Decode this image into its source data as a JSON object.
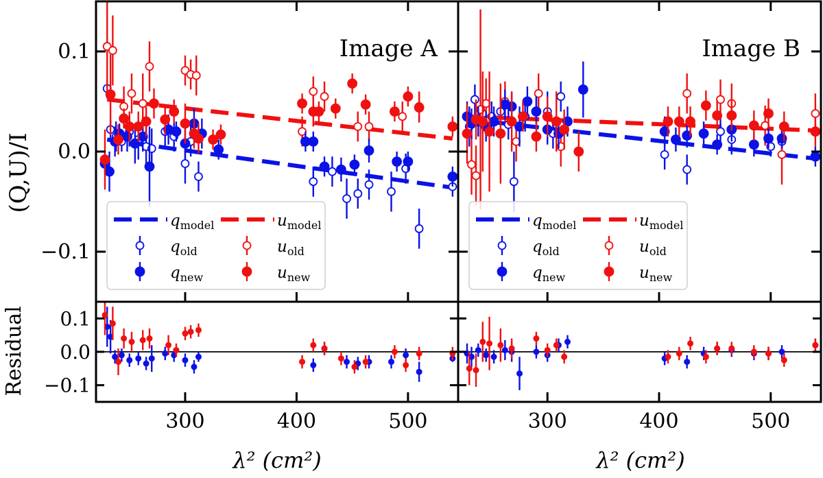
{
  "figure": {
    "ylabel_main": "(Q,U)/I",
    "ylabel_residual": "Residual",
    "xlabel": "λ² (cm²)",
    "colors": {
      "q": "#0a12e6",
      "u": "#f01010",
      "axis": "#000000"
    }
  },
  "chart_data": [
    {
      "type": "scatter",
      "title": "Image A",
      "xlim": [
        220,
        545
      ],
      "ylim": [
        -0.15,
        0.15
      ],
      "resid_ylim": [
        -0.15,
        0.15
      ],
      "xticks": [
        300,
        400,
        500
      ],
      "xticklabels": [
        "300",
        "400",
        "500"
      ],
      "yticks": [
        0.1,
        0.0,
        -0.1
      ],
      "yticklabels": [
        "0.1",
        "0.0",
        "−0.1"
      ],
      "resid_yticks": [
        0.1,
        0.0,
        -0.1
      ],
      "resid_yticklabels": [
        "0.1",
        "0.0",
        "−0.1"
      ],
      "legend": {
        "position": "lower-left",
        "entries": [
          {
            "sym": "q",
            "sub": "model",
            "series": "q_model"
          },
          {
            "sym": "u",
            "sub": "model",
            "series": "u_model"
          },
          {
            "sym": "q",
            "sub": "old",
            "series": "q_old"
          },
          {
            "sym": "u",
            "sub": "old",
            "series": "u_old"
          },
          {
            "sym": "q",
            "sub": "new",
            "series": "q_new"
          },
          {
            "sym": "u",
            "sub": "new",
            "series": "u_new"
          }
        ]
      },
      "models": {
        "q_model": {
          "x": [
            230,
            540
          ],
          "y": [
            0.012,
            -0.036
          ]
        },
        "u_model": {
          "x": [
            230,
            540
          ],
          "y": [
            0.052,
            0.013
          ]
        }
      },
      "series": {
        "q_old": {
          "x": [
            230,
            233,
            238,
            243,
            250,
            258,
            265,
            270,
            282,
            290,
            300,
            305,
            312,
            415,
            432,
            445,
            455,
            465,
            485,
            498,
            510,
            540
          ],
          "y": [
            0.063,
            0.022,
            0.015,
            0.01,
            0.02,
            0.012,
            0.005,
            0.003,
            0.02,
            0.015,
            -0.012,
            0.01,
            -0.025,
            -0.03,
            -0.02,
            -0.047,
            -0.042,
            -0.033,
            -0.04,
            -0.017,
            -0.077,
            -0.035
          ],
          "err": [
            0.01,
            0.01,
            0.015,
            0.01,
            0.015,
            0.02,
            0.02,
            0.02,
            0.015,
            0.015,
            0.02,
            0.015,
            0.015,
            0.015,
            0.015,
            0.02,
            0.015,
            0.015,
            0.02,
            0.015,
            0.02,
            0.01
          ]
        },
        "q_new": {
          "x": [
            228,
            232,
            237,
            241,
            248,
            255,
            262,
            268,
            285,
            292,
            300,
            308,
            315,
            330,
            408,
            415,
            425,
            440,
            452,
            465,
            490,
            500,
            540
          ],
          "y": [
            -0.012,
            -0.02,
            0.01,
            0.018,
            0.015,
            0.008,
            0.015,
            -0.015,
            0.022,
            0.02,
            0.008,
            0.028,
            0.018,
            0.002,
            0.01,
            0.01,
            -0.015,
            -0.018,
            -0.013,
            0.001,
            -0.01,
            -0.01,
            -0.025
          ],
          "err": [
            0.01,
            0.02,
            0.015,
            0.01,
            0.015,
            0.02,
            0.015,
            0.04,
            0.015,
            0.01,
            0.015,
            0.015,
            0.015,
            0.01,
            0.01,
            0.01,
            0.01,
            0.012,
            0.01,
            0.012,
            0.01,
            0.01,
            0.01
          ]
        },
        "u_old": {
          "x": [
            230,
            235,
            245,
            252,
            262,
            268,
            300,
            305,
            310,
            405,
            415,
            425,
            455,
            465,
            495,
            510
          ],
          "y": [
            0.105,
            0.101,
            0.045,
            0.058,
            0.048,
            0.085,
            0.081,
            0.077,
            0.076,
            0.02,
            0.06,
            0.055,
            0.025,
            0.025,
            0.035,
            0.045
          ],
          "err": [
            0.05,
            0.035,
            0.02,
            0.02,
            0.03,
            0.025,
            0.015,
            0.015,
            0.02,
            0.015,
            0.015,
            0.015,
            0.015,
            0.015,
            0.015,
            0.015
          ]
        },
        "u_new": {
          "x": [
            228,
            233,
            240,
            245,
            250,
            258,
            265,
            272,
            282,
            290,
            300,
            308,
            312,
            325,
            332,
            405,
            415,
            420,
            435,
            450,
            462,
            488,
            500,
            510,
            540
          ],
          "y": [
            -0.008,
            0.057,
            0.012,
            0.033,
            0.025,
            0.025,
            0.03,
            0.048,
            0.032,
            0.04,
            0.028,
            0.018,
            0.013,
            0.012,
            0.017,
            0.048,
            0.04,
            0.04,
            0.043,
            0.068,
            0.047,
            0.04,
            0.055,
            0.044,
            0.025
          ],
          "err": [
            0.03,
            0.04,
            0.015,
            0.01,
            0.015,
            0.015,
            0.015,
            0.015,
            0.015,
            0.012,
            0.02,
            0.015,
            0.015,
            0.01,
            0.01,
            0.01,
            0.015,
            0.01,
            0.01,
            0.01,
            0.01,
            0.01,
            0.01,
            0.015,
            0.01
          ]
        }
      },
      "residuals": {
        "q": {
          "x": [
            230,
            233,
            237,
            243,
            250,
            258,
            265,
            270,
            282,
            290,
            300,
            308,
            312,
            415,
            425,
            445,
            455,
            465,
            485,
            498,
            510,
            540
          ],
          "y": [
            0.075,
            0.045,
            -0.015,
            -0.01,
            -0.025,
            -0.02,
            -0.035,
            -0.02,
            -0.005,
            -0.01,
            -0.025,
            -0.045,
            -0.015,
            -0.04,
            0.01,
            -0.03,
            -0.035,
            -0.03,
            -0.03,
            -0.01,
            -0.06,
            -0.02
          ],
          "err": [
            0.06,
            0.05,
            0.02,
            0.02,
            0.02,
            0.02,
            0.02,
            0.04,
            0.02,
            0.02,
            0.02,
            0.02,
            0.015,
            0.02,
            0.02,
            0.02,
            0.02,
            0.02,
            0.02,
            0.02,
            0.03,
            0.01
          ]
        },
        "u": {
          "x": [
            228,
            235,
            240,
            245,
            252,
            262,
            268,
            285,
            292,
            300,
            305,
            312,
            405,
            415,
            425,
            440,
            452,
            462,
            488,
            498,
            510,
            540
          ],
          "y": [
            0.11,
            0.085,
            -0.03,
            0.04,
            0.03,
            0.035,
            0.04,
            0.02,
            0.005,
            0.055,
            0.06,
            0.065,
            -0.03,
            0.02,
            0.01,
            -0.02,
            -0.045,
            -0.03,
            0.0,
            -0.04,
            -0.005,
            -0.005
          ],
          "err": [
            0.06,
            0.05,
            0.04,
            0.03,
            0.03,
            0.03,
            0.03,
            0.03,
            0.02,
            0.02,
            0.02,
            0.02,
            0.02,
            0.02,
            0.02,
            0.02,
            0.02,
            0.02,
            0.02,
            0.02,
            0.02,
            0.02
          ]
        }
      }
    },
    {
      "type": "scatter",
      "title": "Image B",
      "xlim": [
        220,
        545
      ],
      "ylim": [
        -0.15,
        0.15
      ],
      "resid_ylim": [
        -0.15,
        0.15
      ],
      "xticks": [
        300,
        400,
        500
      ],
      "xticklabels": [
        "300",
        "400",
        "500"
      ],
      "legend": {
        "position": "lower-left",
        "entries": [
          {
            "sym": "q",
            "sub": "model",
            "series": "q_model"
          },
          {
            "sym": "u",
            "sub": "model",
            "series": "u_model"
          },
          {
            "sym": "q",
            "sub": "old",
            "series": "q_old"
          },
          {
            "sym": "u",
            "sub": "old",
            "series": "u_old"
          },
          {
            "sym": "q",
            "sub": "new",
            "series": "q_new"
          },
          {
            "sym": "u",
            "sub": "new",
            "series": "u_new"
          }
        ]
      },
      "models": {
        "q_model": {
          "x": [
            230,
            540
          ],
          "y": [
            0.032,
            -0.007
          ]
        },
        "u_model": {
          "x": [
            230,
            540
          ],
          "y": [
            0.035,
            0.021
          ]
        }
      },
      "series": {
        "q_old": {
          "x": [
            230,
            235,
            242,
            250,
            258,
            265,
            270,
            280,
            290,
            300,
            305,
            312,
            405,
            425,
            455,
            465,
            500,
            510
          ],
          "y": [
            0.025,
            0.052,
            0.038,
            0.035,
            0.04,
            0.027,
            -0.03,
            0.035,
            0.04,
            0.04,
            0.018,
            0.055,
            -0.003,
            -0.018,
            0.02,
            0.012,
            0.005,
            0.01
          ],
          "err": [
            0.02,
            0.015,
            0.02,
            0.015,
            0.015,
            0.015,
            0.03,
            0.015,
            0.015,
            0.02,
            0.015,
            0.015,
            0.015,
            0.015,
            0.015,
            0.015,
            0.01,
            0.01
          ]
        },
        "q_new": {
          "x": [
            228,
            232,
            238,
            245,
            252,
            262,
            268,
            275,
            282,
            290,
            300,
            310,
            318,
            332,
            405,
            415,
            425,
            440,
            452,
            465,
            485,
            498,
            510,
            540
          ],
          "y": [
            0.035,
            0.028,
            0.03,
            0.025,
            0.03,
            0.047,
            0.045,
            0.025,
            0.05,
            0.04,
            0.022,
            0.018,
            0.03,
            0.062,
            0.02,
            0.012,
            0.016,
            0.018,
            0.007,
            0.022,
            0.007,
            0.013,
            0.013,
            -0.005
          ],
          "err": [
            0.015,
            0.015,
            0.015,
            0.015,
            0.015,
            0.015,
            0.015,
            0.02,
            0.015,
            0.015,
            0.015,
            0.015,
            0.015,
            0.028,
            0.015,
            0.012,
            0.012,
            0.012,
            0.01,
            0.012,
            0.012,
            0.01,
            0.01,
            0.01
          ]
        },
        "u_old": {
          "x": [
            232,
            236,
            240,
            245,
            262,
            272,
            292,
            312,
            425,
            455,
            465,
            495,
            510,
            540
          ],
          "y": [
            -0.013,
            -0.024,
            0.042,
            0.048,
            0.05,
            0.01,
            0.058,
            0.005,
            0.058,
            0.052,
            0.048,
            0.026,
            -0.003,
            0.038
          ],
          "err": [
            0.03,
            0.03,
            0.1,
            0.025,
            0.02,
            0.02,
            0.02,
            0.02,
            0.02,
            0.02,
            0.02,
            0.02,
            0.03,
            0.02
          ]
        },
        "u_new": {
          "x": [
            228,
            236,
            242,
            248,
            258,
            268,
            278,
            290,
            300,
            308,
            315,
            328,
            408,
            418,
            428,
            442,
            452,
            465,
            485,
            498,
            512,
            540
          ],
          "y": [
            0.018,
            0.032,
            0.03,
            0.02,
            0.018,
            0.03,
            0.035,
            0.015,
            0.035,
            0.03,
            0.022,
            0.0,
            0.03,
            0.03,
            0.03,
            0.046,
            0.036,
            0.036,
            0.026,
            0.038,
            0.025,
            0.02
          ],
          "err": [
            0.03,
            0.02,
            0.05,
            0.06,
            0.05,
            0.03,
            0.015,
            0.015,
            0.02,
            0.03,
            0.02,
            0.02,
            0.015,
            0.015,
            0.015,
            0.015,
            0.015,
            0.015,
            0.015,
            0.015,
            0.015,
            0.015
          ]
        }
      },
      "residuals": {
        "q": {
          "x": [
            228,
            232,
            238,
            245,
            252,
            262,
            268,
            275,
            290,
            300,
            310,
            318,
            405,
            425,
            440,
            452,
            465,
            485,
            498,
            510,
            540
          ],
          "y": [
            -0.005,
            -0.015,
            0.005,
            -0.01,
            -0.015,
            0.005,
            0.0,
            -0.065,
            0.0,
            -0.01,
            0.02,
            0.03,
            -0.02,
            -0.03,
            -0.005,
            0.01,
            0.005,
            -0.005,
            -0.005,
            0.0,
            0.02
          ],
          "err": [
            0.03,
            0.03,
            0.02,
            0.02,
            0.02,
            0.03,
            0.03,
            0.05,
            0.02,
            0.02,
            0.02,
            0.02,
            0.02,
            0.02,
            0.02,
            0.02,
            0.02,
            0.02,
            0.02,
            0.02,
            0.02
          ]
        },
        "u": {
          "x": [
            230,
            236,
            242,
            248,
            258,
            268,
            290,
            300,
            308,
            315,
            408,
            418,
            428,
            442,
            452,
            465,
            485,
            498,
            512,
            540
          ],
          "y": [
            -0.05,
            -0.055,
            0.03,
            0.025,
            0.02,
            0.01,
            0.04,
            0.005,
            0.02,
            -0.015,
            -0.015,
            -0.005,
            0.025,
            -0.015,
            0.01,
            0.01,
            0.0,
            -0.005,
            -0.025,
            0.02
          ],
          "err": [
            0.05,
            0.05,
            0.06,
            0.08,
            0.05,
            0.03,
            0.02,
            0.02,
            0.02,
            0.02,
            0.02,
            0.02,
            0.02,
            0.02,
            0.02,
            0.02,
            0.02,
            0.02,
            0.02,
            0.02
          ]
        }
      }
    }
  ]
}
